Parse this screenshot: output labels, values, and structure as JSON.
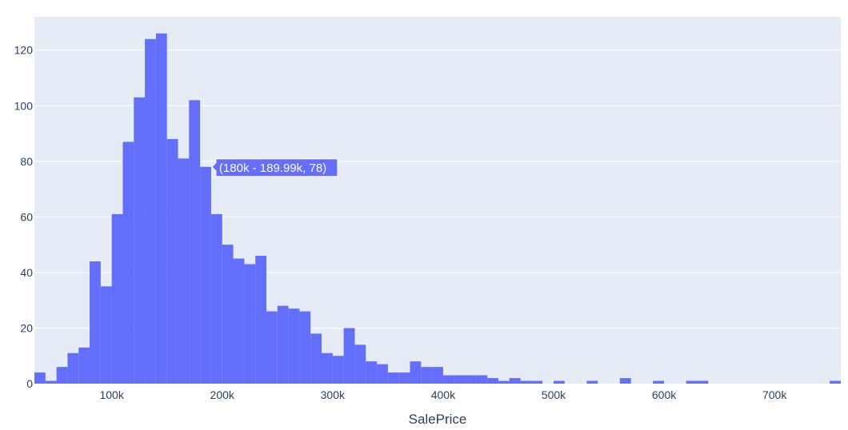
{
  "chart_data": {
    "type": "bar",
    "subtype": "histogram",
    "xlabel": "SalePrice",
    "ylabel": "",
    "bin_width": 10000,
    "bin_start": 30000,
    "xlim": [
      30000,
      760000
    ],
    "ylim": [
      0,
      132
    ],
    "x_ticks": [
      {
        "value": 100000,
        "label": "100k"
      },
      {
        "value": 200000,
        "label": "200k"
      },
      {
        "value": 300000,
        "label": "300k"
      },
      {
        "value": 400000,
        "label": "400k"
      },
      {
        "value": 500000,
        "label": "500k"
      },
      {
        "value": 600000,
        "label": "600k"
      },
      {
        "value": 700000,
        "label": "700k"
      }
    ],
    "y_ticks": [
      {
        "value": 0,
        "label": "0"
      },
      {
        "value": 20,
        "label": "20"
      },
      {
        "value": 40,
        "label": "40"
      },
      {
        "value": 60,
        "label": "60"
      },
      {
        "value": 80,
        "label": "80"
      },
      {
        "value": 100,
        "label": "100"
      },
      {
        "value": 120,
        "label": "120"
      }
    ],
    "values": [
      4,
      1,
      6,
      11,
      13,
      44,
      35,
      61,
      87,
      103,
      124,
      126,
      88,
      81,
      102,
      78,
      61,
      50,
      45,
      43,
      46,
      26,
      28,
      27,
      26,
      18,
      11,
      10,
      20,
      14,
      8,
      7,
      4,
      4,
      8,
      6,
      6,
      3,
      3,
      3,
      3,
      2,
      1,
      2,
      1,
      1,
      0,
      1,
      0,
      0,
      1,
      0,
      0,
      2,
      0,
      0,
      1,
      0,
      0,
      1,
      1,
      0,
      0,
      0,
      0,
      0,
      0,
      0,
      0,
      0,
      0,
      0,
      1
    ],
    "grid": true,
    "bar_color": "#636efa",
    "plot_bg": "#e5ecf6",
    "tooltip": {
      "text": "(180k - 189.99k, 78)",
      "bin_index": 15
    }
  }
}
